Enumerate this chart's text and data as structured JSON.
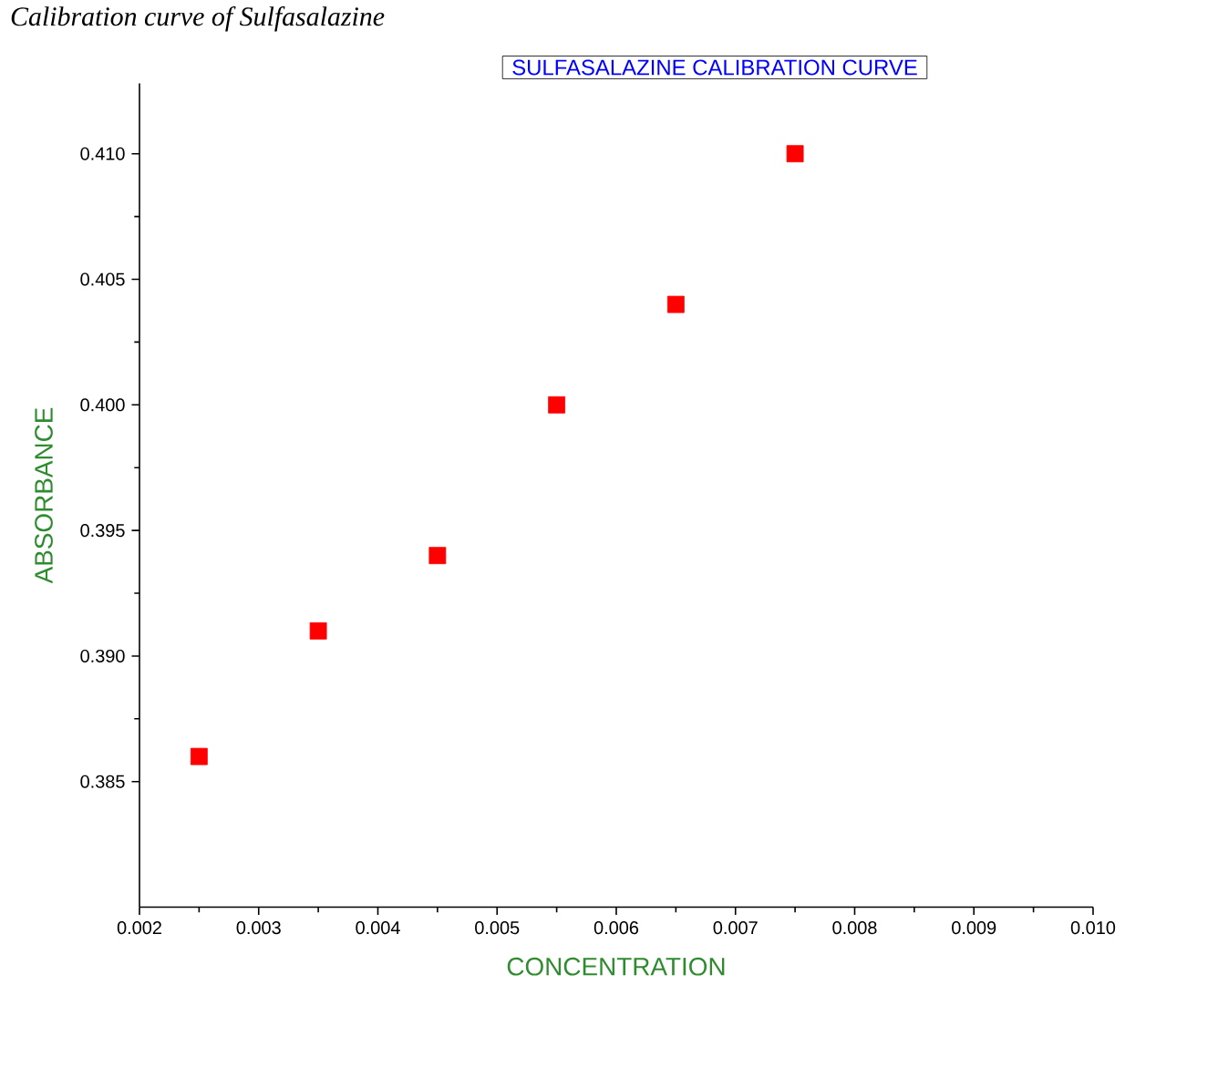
{
  "chart_data": {
    "type": "scatter",
    "title": "SULFASALAZINE CALIBRATION CURVE",
    "xlabel": "CONCENTRATION",
    "ylabel": "ABSORBANCE",
    "annotations": [
      "Calibration curve of Sulfasalazine"
    ],
    "x": [
      0.0025,
      0.0035,
      0.0045,
      0.0055,
      0.0065,
      0.0075
    ],
    "series": [
      {
        "color": "#ff0000",
        "values": [
          0.386,
          0.391,
          0.394,
          0.4,
          0.404,
          0.41
        ]
      }
    ],
    "marker": "square",
    "xlim": [
      0.002,
      0.01
    ],
    "ylim": [
      0.38,
      0.4128
    ],
    "xticks": [
      {
        "value": 0.002,
        "label": "0.002"
      },
      {
        "value": 0.003,
        "label": "0.003"
      },
      {
        "value": 0.004,
        "label": "0.004"
      },
      {
        "value": 0.005,
        "label": "0.005"
      },
      {
        "value": 0.006,
        "label": "0.006"
      },
      {
        "value": 0.007,
        "label": "0.007"
      },
      {
        "value": 0.008,
        "label": "0.008"
      },
      {
        "value": 0.009,
        "label": "0.009"
      },
      {
        "value": 0.01,
        "label": "0.010"
      }
    ],
    "yticks": [
      {
        "value": 0.385,
        "label": "0.385"
      },
      {
        "value": 0.39,
        "label": "0.390"
      },
      {
        "value": 0.395,
        "label": "0.395"
      },
      {
        "value": 0.4,
        "label": "0.400"
      },
      {
        "value": 0.405,
        "label": "0.405"
      },
      {
        "value": 0.41,
        "label": "0.410"
      }
    ]
  }
}
